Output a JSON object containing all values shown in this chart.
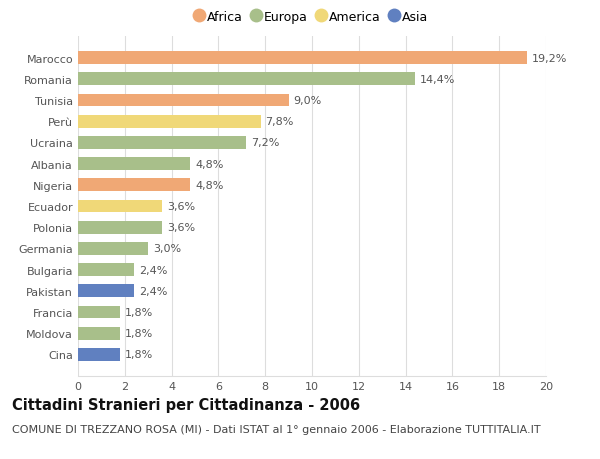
{
  "countries": [
    "Marocco",
    "Romania",
    "Tunisia",
    "Perù",
    "Ucraina",
    "Albania",
    "Nigeria",
    "Ecuador",
    "Polonia",
    "Germania",
    "Bulgaria",
    "Pakistan",
    "Francia",
    "Moldova",
    "Cina"
  ],
  "values": [
    19.2,
    14.4,
    9.0,
    7.8,
    7.2,
    4.8,
    4.8,
    3.6,
    3.6,
    3.0,
    2.4,
    2.4,
    1.8,
    1.8,
    1.8
  ],
  "continents": [
    "Africa",
    "Europa",
    "Africa",
    "America",
    "Europa",
    "Europa",
    "Africa",
    "America",
    "Europa",
    "Europa",
    "Europa",
    "Asia",
    "Europa",
    "Europa",
    "Asia"
  ],
  "colors": {
    "Africa": "#F0A875",
    "Europa": "#A8BF8A",
    "America": "#F0D878",
    "Asia": "#6080C0"
  },
  "legend_order": [
    "Africa",
    "Europa",
    "America",
    "Asia"
  ],
  "title": "Cittadini Stranieri per Cittadinanza - 2006",
  "subtitle": "COMUNE DI TREZZANO ROSA (MI) - Dati ISTAT al 1° gennaio 2006 - Elaborazione TUTTITALIA.IT",
  "xlim": [
    0,
    20
  ],
  "xticks": [
    0,
    2,
    4,
    6,
    8,
    10,
    12,
    14,
    16,
    18,
    20
  ],
  "background_color": "#ffffff",
  "grid_color": "#dddddd",
  "bar_height": 0.6,
  "title_fontsize": 10.5,
  "subtitle_fontsize": 8,
  "label_fontsize": 8,
  "value_fontsize": 8,
  "tick_fontsize": 8
}
